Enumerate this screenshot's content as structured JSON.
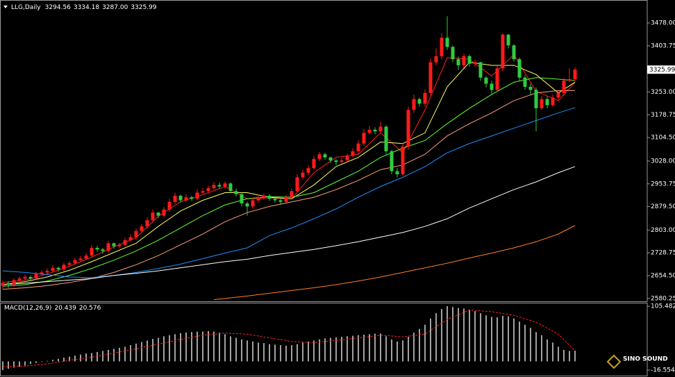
{
  "chart_data": [
    {
      "type": "candlestick",
      "title": "LLG,Daily",
      "last_labels": [
        "3294.56",
        "3334.18",
        "3287.00",
        "3325.99"
      ],
      "up_color": "#ff1a1a",
      "down_color": "#2ecc40",
      "open": [
        2622,
        2630,
        2625,
        2640,
        2645,
        2650,
        2645,
        2660,
        2665,
        2670,
        2680,
        2675,
        2690,
        2695,
        2705,
        2710,
        2720,
        2745,
        2740,
        2735,
        2760,
        2750,
        2755,
        2770,
        2780,
        2800,
        2815,
        2835,
        2860,
        2850,
        2870,
        2895,
        2915,
        2900,
        2910,
        2905,
        2925,
        2930,
        2940,
        2950,
        2945,
        2955,
        2930,
        2920,
        2890,
        2880,
        2900,
        2910,
        2915,
        2905,
        2900,
        2895,
        2910,
        2930,
        2975,
        2990,
        3005,
        3035,
        3050,
        3040,
        3030,
        3025,
        3030,
        3045,
        3060,
        3085,
        3120,
        3130,
        3125,
        3140,
        3060,
        2995,
        2985,
        3075,
        3195,
        3230,
        3215,
        3250,
        3350,
        3370,
        3430,
        3400,
        3360,
        3340,
        3370,
        3345,
        3350,
        3300,
        3280,
        3260,
        3330,
        3440,
        3405,
        3360,
        3300,
        3270,
        3260,
        3200,
        3230,
        3210,
        3235,
        3250,
        3290,
        3294.56
      ],
      "high": [
        2638,
        2636,
        2646,
        2652,
        2658,
        2655,
        2666,
        2672,
        2678,
        2688,
        2684,
        2697,
        2702,
        2712,
        2718,
        2728,
        2755,
        2752,
        2745,
        2768,
        2762,
        2762,
        2778,
        2790,
        2808,
        2822,
        2845,
        2870,
        2862,
        2878,
        2905,
        2925,
        2918,
        2920,
        2915,
        2935,
        2940,
        2948,
        2960,
        2958,
        2962,
        2958,
        2938,
        2925,
        2895,
        2908,
        2918,
        2922,
        2920,
        2910,
        2905,
        2918,
        2938,
        2985,
        3000,
        3015,
        3045,
        3058,
        3055,
        3042,
        3035,
        3038,
        3052,
        3070,
        3095,
        3132,
        3142,
        3138,
        3155,
        3145,
        3065,
        3005,
        3085,
        3205,
        3245,
        3235,
        3262,
        3362,
        3395,
        3445,
        3500,
        3405,
        3368,
        3378,
        3375,
        3358,
        3352,
        3305,
        3290,
        3340,
        3445,
        3442,
        3408,
        3365,
        3308,
        3280,
        3268,
        3240,
        3238,
        3245,
        3258,
        3298,
        3330,
        3334.18
      ],
      "low": [
        2610,
        2615,
        2618,
        2632,
        2638,
        2636,
        2640,
        2655,
        2660,
        2664,
        2668,
        2670,
        2684,
        2690,
        2700,
        2705,
        2715,
        2732,
        2726,
        2730,
        2742,
        2745,
        2750,
        2765,
        2772,
        2795,
        2808,
        2828,
        2842,
        2845,
        2862,
        2888,
        2892,
        2895,
        2898,
        2900,
        2918,
        2922,
        2935,
        2938,
        2938,
        2925,
        2912,
        2880,
        2850,
        2872,
        2892,
        2902,
        2898,
        2892,
        2885,
        2888,
        2902,
        2925,
        2968,
        2982,
        3000,
        3028,
        3032,
        3022,
        3015,
        3020,
        3024,
        3038,
        3052,
        3078,
        3115,
        3115,
        3118,
        3050,
        2985,
        2975,
        2980,
        3065,
        3185,
        3205,
        3205,
        3240,
        3340,
        3360,
        3390,
        3350,
        3325,
        3332,
        3335,
        3335,
        3290,
        3268,
        3248,
        3255,
        3320,
        3395,
        3352,
        3290,
        3260,
        3245,
        3125,
        3195,
        3200,
        3205,
        3228,
        3240,
        3285,
        3287
      ],
      "close": [
        2630,
        2625,
        2640,
        2645,
        2650,
        2645,
        2660,
        2665,
        2670,
        2680,
        2675,
        2690,
        2695,
        2705,
        2710,
        2720,
        2745,
        2740,
        2735,
        2760,
        2750,
        2755,
        2770,
        2780,
        2800,
        2815,
        2835,
        2860,
        2850,
        2870,
        2895,
        2915,
        2900,
        2910,
        2905,
        2925,
        2930,
        2940,
        2950,
        2945,
        2955,
        2930,
        2920,
        2890,
        2880,
        2900,
        2910,
        2915,
        2905,
        2900,
        2895,
        2910,
        2930,
        2975,
        2990,
        3005,
        3035,
        3050,
        3040,
        3030,
        3025,
        3030,
        3045,
        3060,
        3085,
        3120,
        3130,
        3125,
        3140,
        3060,
        2995,
        2985,
        3075,
        3195,
        3230,
        3215,
        3250,
        3350,
        3370,
        3430,
        3400,
        3360,
        3340,
        3370,
        3345,
        3350,
        3300,
        3280,
        3260,
        3330,
        3440,
        3405,
        3360,
        3300,
        3270,
        3260,
        3200,
        3230,
        3210,
        3235,
        3250,
        3290,
        3295,
        3325.99
      ],
      "series": [
        {
          "color": "#ff2020",
          "x": [
            0,
            4,
            8,
            12,
            16,
            20,
            24,
            28,
            32,
            36,
            40,
            44,
            48,
            52,
            56,
            60,
            64,
            68,
            72,
            76,
            80,
            84,
            88,
            92,
            96,
            100,
            103
          ],
          "values": [
            2632,
            2640,
            2660,
            2685,
            2715,
            2748,
            2778,
            2848,
            2895,
            2918,
            2945,
            2905,
            2908,
            2905,
            2990,
            3040,
            3050,
            3120,
            3055,
            3195,
            3365,
            3360,
            3305,
            3375,
            3255,
            3225,
            3285
          ]
        },
        {
          "color": "#ffff66",
          "x": [
            0,
            4,
            8,
            12,
            16,
            20,
            24,
            28,
            32,
            36,
            40,
            44,
            48,
            52,
            56,
            60,
            64,
            68,
            72,
            76,
            80,
            84,
            88,
            92,
            96,
            100,
            103
          ],
          "values": [
            2625,
            2635,
            2650,
            2672,
            2700,
            2730,
            2760,
            2815,
            2865,
            2900,
            2925,
            2925,
            2910,
            2905,
            2950,
            3010,
            3040,
            3090,
            3085,
            3120,
            3270,
            3350,
            3340,
            3340,
            3310,
            3250,
            3285
          ]
        },
        {
          "color": "#66ff33",
          "x": [
            0,
            4,
            8,
            12,
            16,
            20,
            24,
            28,
            32,
            36,
            40,
            44,
            48,
            52,
            56,
            60,
            64,
            68,
            72,
            76,
            80,
            84,
            88,
            92,
            96,
            100,
            103
          ],
          "values": [
            2620,
            2625,
            2637,
            2655,
            2678,
            2705,
            2735,
            2770,
            2810,
            2850,
            2885,
            2905,
            2912,
            2910,
            2925,
            2960,
            2995,
            3040,
            3070,
            3095,
            3150,
            3200,
            3245,
            3285,
            3300,
            3295,
            3290
          ]
        },
        {
          "color": "#ffa07a",
          "x": [
            0,
            4,
            8,
            12,
            16,
            20,
            24,
            28,
            32,
            36,
            40,
            44,
            48,
            52,
            56,
            60,
            64,
            68,
            72,
            76,
            80,
            84,
            88,
            92,
            96,
            100,
            103
          ],
          "values": [
            2610,
            2615,
            2622,
            2632,
            2645,
            2665,
            2690,
            2720,
            2755,
            2790,
            2830,
            2860,
            2880,
            2895,
            2910,
            2935,
            2965,
            3000,
            3015,
            3050,
            3110,
            3150,
            3185,
            3225,
            3250,
            3258,
            3258
          ]
        },
        {
          "color": "#1e90ff",
          "x": [
            0,
            4,
            8,
            12,
            16,
            20,
            24,
            28,
            32,
            36,
            40,
            44,
            48,
            52,
            56,
            60,
            64,
            68,
            72,
            76,
            80,
            84,
            88,
            92,
            96,
            100,
            103
          ],
          "values": [
            2670,
            2665,
            2658,
            2650,
            2648,
            2655,
            2665,
            2678,
            2692,
            2710,
            2728,
            2745,
            2785,
            2810,
            2840,
            2872,
            2910,
            2945,
            2975,
            3010,
            3055,
            3085,
            3110,
            3135,
            3160,
            3185,
            3202
          ]
        },
        {
          "color": "#ffffff",
          "x": [
            0,
            4,
            8,
            12,
            16,
            20,
            24,
            28,
            32,
            36,
            40,
            44,
            48,
            52,
            56,
            60,
            64,
            68,
            72,
            76,
            80,
            84,
            88,
            92,
            96,
            100,
            103
          ],
          "values": [
            2625,
            2630,
            2635,
            2640,
            2645,
            2655,
            2662,
            2670,
            2680,
            2690,
            2700,
            2708,
            2720,
            2730,
            2740,
            2752,
            2765,
            2780,
            2795,
            2815,
            2840,
            2875,
            2905,
            2935,
            2960,
            2990,
            3010
          ]
        },
        {
          "color": "#ff7f27",
          "x": [
            38,
            40,
            44,
            48,
            52,
            56,
            60,
            64,
            68,
            72,
            76,
            80,
            84,
            88,
            92,
            96,
            100,
            103
          ],
          "values": [
            2576,
            2580,
            2588,
            2597,
            2606,
            2615,
            2625,
            2637,
            2650,
            2665,
            2680,
            2695,
            2712,
            2728,
            2745,
            2765,
            2790,
            2818
          ]
        }
      ],
      "ylim": [
        2573,
        3519
      ],
      "yticks": [
        {
          "value": 3478,
          "label": "3478.00"
        },
        {
          "value": 3403.75,
          "label": "3403.75"
        },
        {
          "value": 3253,
          "label": "3253.00"
        },
        {
          "value": 3178.75,
          "label": "3178.75"
        },
        {
          "value": 3104.5,
          "label": "3104.50"
        },
        {
          "value": 3028,
          "label": "3028.00"
        },
        {
          "value": 2953.75,
          "label": "2953.75"
        },
        {
          "value": 2879.5,
          "label": "2879.50"
        },
        {
          "value": 2803,
          "label": "2803.00"
        },
        {
          "value": 2728.75,
          "label": "2728.75"
        },
        {
          "value": 2654.5,
          "label": "2654.50"
        },
        {
          "value": 2580.25,
          "label": "2580.25"
        }
      ]
    },
    {
      "type": "macd",
      "title": "MACD(12,26,9)",
      "color": "#d8d8d8",
      "values": [
        -16.554,
        -14,
        -12,
        -10,
        -8,
        -5,
        -3,
        -1,
        1,
        3,
        5,
        7,
        9,
        11,
        13,
        15,
        16,
        18,
        20,
        22,
        24,
        26,
        28,
        31,
        34,
        37,
        40,
        43,
        45,
        48,
        50,
        52,
        54,
        55,
        56,
        57,
        57,
        58,
        57,
        55,
        52,
        48,
        45,
        42,
        40,
        38,
        36,
        35,
        33,
        32,
        31,
        30,
        31,
        33,
        36,
        38,
        40,
        42,
        44,
        45,
        46,
        47,
        48,
        49,
        50,
        51,
        52,
        53,
        53,
        48,
        42,
        38,
        40,
        47,
        55,
        62,
        70,
        82,
        92,
        100,
        105.482,
        104,
        102,
        101,
        99,
        96,
        92,
        88,
        85,
        84,
        87,
        86,
        82,
        76,
        70,
        64,
        56,
        50,
        42,
        36,
        28,
        22,
        20,
        20.439
      ],
      "series": [
        {
          "color": "#ff2020",
          "x": [
            0,
            4,
            8,
            12,
            16,
            20,
            24,
            28,
            32,
            36,
            40,
            44,
            48,
            52,
            56,
            60,
            64,
            68,
            72,
            76,
            80,
            84,
            88,
            92,
            96,
            100,
            103
          ],
          "values": [
            -10,
            -9,
            -5,
            2,
            8,
            16,
            24,
            33,
            42,
            50,
            54,
            52,
            45,
            38,
            36,
            40,
            45,
            50,
            47,
            52,
            80,
            98,
            95,
            88,
            75,
            52,
            20.576
          ]
        }
      ],
      "ylim": [
        -16.554,
        105.482
      ],
      "yticks": [
        105.482,
        -16.554
      ]
    }
  ],
  "watermark": "SINO SOUND"
}
